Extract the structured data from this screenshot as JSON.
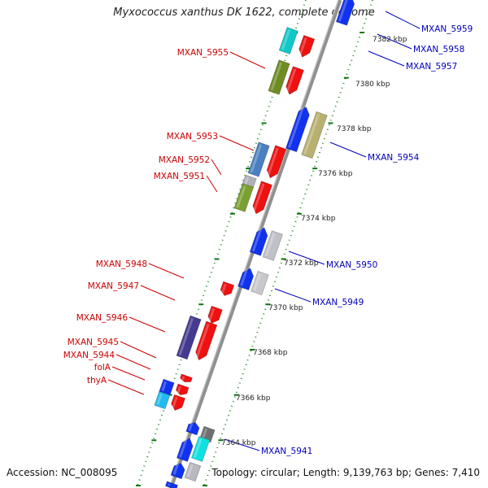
{
  "title": "Myxococcus xanthus DK 1622, complete genome",
  "accession": "Accession: NC_008095",
  "summary": "Topology: circular; Length: 9,139,763 bp; Genes: 7,410",
  "colors": {
    "plus_gene": "#ee1111",
    "minus_gene": "#1111ee",
    "axis": "#888888",
    "tick": "#117711",
    "label_plus": "#cc0000",
    "label_minus": "#0000bb"
  },
  "kbp_labels": [
    "7382 kbp",
    "7380 kbp",
    "7378 kbp",
    "7376 kbp",
    "7374 kbp",
    "7372 kbp",
    "7370 kbp",
    "7368 kbp",
    "7366 kbp",
    "7364 kbp"
  ],
  "left_labels": [
    "MXAN_5955",
    "MXAN_5953",
    "MXAN_5952",
    "MXAN_5951",
    "MXAN_5948",
    "MXAN_5947",
    "MXAN_5946",
    "MXAN_5945",
    "MXAN_5944",
    "folA",
    "thyA"
  ],
  "right_labels": [
    "MXAN_5959",
    "MXAN_5958",
    "MXAN_5957",
    "MXAN_5954",
    "MXAN_5950",
    "MXAN_5949",
    "MXAN_5941"
  ]
}
